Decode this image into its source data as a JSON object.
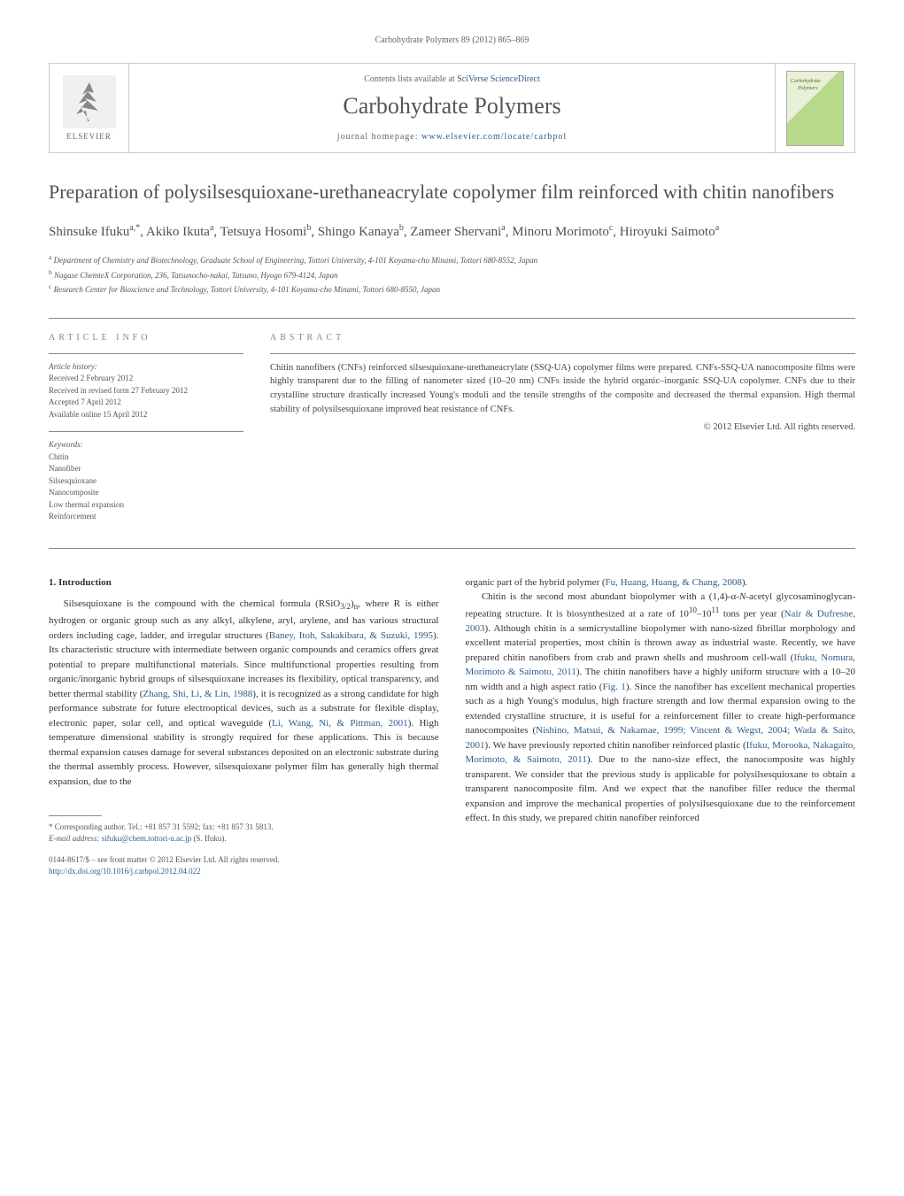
{
  "running_header": "Carbohydrate Polymers 89 (2012) 865–869",
  "header": {
    "contents_prefix": "Contents lists available at ",
    "contents_link": "SciVerse ScienceDirect",
    "journal_name": "Carbohydrate Polymers",
    "homepage_prefix": "journal homepage: ",
    "homepage_link": "www.elsevier.com/locate/carbpol",
    "publisher": "ELSEVIER",
    "cover_text": "Carbohydrate Polymers"
  },
  "title": "Preparation of polysilsesquioxane-urethaneacrylate copolymer film reinforced with chitin nanofibers",
  "authors_html": "Shinsuke Ifuku<sup>a,*</sup>, Akiko Ikuta<sup>a</sup>, Tetsuya Hosomi<sup>b</sup>, Shingo Kanaya<sup>b</sup>, Zameer Shervani<sup>a</sup>, Minoru Morimoto<sup>c</sup>, Hiroyuki Saimoto<sup>a</sup>",
  "affiliations": [
    "<sup>a</sup> Department of Chemistry and Biotechnology, Graduate School of Engineering, Tottori University, 4-101 Koyama-cho Minami, Tottori 680-8552, Japan",
    "<sup>b</sup> Nagase ChemteX Corporation, 236, Tatsunocho-nakai, Tatsuno, Hyogo 679-4124, Japan",
    "<sup>c</sup> Research Center for Bioscience and Technology, Tottori University, 4-101 Koyama-cho Minami, Tottori 680-8550, Japan"
  ],
  "article_info": {
    "header": "ARTICLE INFO",
    "history_label": "Article history:",
    "history": [
      "Received 2 February 2012",
      "Received in revised form 27 February 2012",
      "Accepted 7 April 2012",
      "Available online 15 April 2012"
    ],
    "keywords_label": "Keywords:",
    "keywords": [
      "Chitin",
      "Nanofiber",
      "Silsesquioxane",
      "Nanocomposite",
      "Low thermal expansion",
      "Reinforcement"
    ]
  },
  "abstract": {
    "header": "ABSTRACT",
    "text": "Chitin nanofibers (CNFs) reinforced silsesquioxane-urethaneacrylate (SSQ-UA) copolymer films were prepared. CNFs-SSQ-UA nanocomposite films were highly transparent due to the filling of nanometer sized (10–20 nm) CNFs inside the hybrid organic–inorganic SSQ-UA copolymer. CNFs due to their crystalline structure drastically increased Young's moduli and the tensile strengths of the composite and decreased the thermal expansion. High thermal stability of polysilsesquioxane improved heat resistance of CNFs.",
    "copyright": "© 2012 Elsevier Ltd. All rights reserved."
  },
  "body": {
    "heading1": "1. Introduction",
    "col1_html": "Silsesquioxane is the compound with the chemical formula (RSiO<sub>3/2</sub>)<sub>n</sub>, where R is either hydrogen or organic group such as any alkyl, alkylene, aryl, arylene, and has various structural orders including cage, ladder, and irregular structures (<a class='ref-link' data-name='ref-link' data-interactable='true'>Baney, Itoh, Sakakibara, &amp; Suzuki, 1995</a>). Its characteristic structure with intermediate between organic compounds and ceramics offers great potential to prepare multifunctional materials. Since multifunctional properties resulting from organic/inorganic hybrid groups of silsesquioxane increases its flexibility, optical transparency, and better thermal stability (<a class='ref-link' data-name='ref-link' data-interactable='true'>Zhang, Shi, Li, &amp; Lin, 1988</a>), it is recognized as a strong candidate for high performance substrate for future electrooptical devices, such as a substrate for flexible display, electronic paper, solar cell, and optical waveguide (<a class='ref-link' data-name='ref-link' data-interactable='true'>Li, Wang, Ni, &amp; Pittman, 2001</a>). High temperature dimensional stability is strongly required for these applications. This is because thermal expansion causes damage for several substances deposited on an electronic substrate during the thermal assembly process. However, silsesquioxane polymer film has generally high thermal expansion, due to the",
    "col2_html": "organic part of the hybrid polymer (<a class='ref-link' data-name='ref-link' data-interactable='true'>Fu, Huang, Huang, &amp; Chang, 2008</a>).<br>&nbsp;&nbsp;&nbsp;&nbsp;Chitin is the second most abundant biopolymer with a (1,4)-α-<i>N</i>-acetyl glycosaminoglycan-repeating structure. It is biosynthesized at a rate of 10<sup>10</sup>–10<sup>11</sup> tons per year (<a class='ref-link' data-name='ref-link' data-interactable='true'>Nair &amp; Dufresne, 2003</a>). Although chitin is a semicrystalline biopolymer with nano-sized fibrillar morphology and excellent material properties, most chitin is thrown away as industrial waste. Recently, we have prepared chitin nanofibers from crab and prawn shells and mushroom cell-wall (<a class='ref-link' data-name='ref-link' data-interactable='true'>Ifuku, Nomura, Morimoto &amp; Saimoto, 2011</a>). The chitin nanofibers have a highly uniform structure with a 10–20 nm width and a high aspect ratio (<a class='ref-link' data-name='ref-link' data-interactable='true'>Fig. 1</a>). Since the nanofiber has excellent mechanical properties such as a high Young's modulus, high fracture strength and low thermal expansion owing to the extended crystalline structure, it is useful for a reinforcement filler to create high-performance nanocomposites (<a class='ref-link' data-name='ref-link' data-interactable='true'>Nishino, Matsui, &amp; Nakamae, 1999; Vincent &amp; Wegst, 2004; Wada &amp; Saito, 2001</a>). We have previously reported chitin nanofiber reinforced plastic (<a class='ref-link' data-name='ref-link' data-interactable='true'>Ifuku, Morooka, Nakagaito, Morimoto, &amp; Saimoto, 2011</a>). Due to the nano-size effect, the nanocomposite was highly transparent. We consider that the previous study is applicable for polysilsesquioxane to obtain a transparent nanocomposite film. And we expect that the nanofiber filler reduce the thermal expansion and improve the mechanical properties of polysilsesquioxane due to the reinforcement effect. In this study, we prepared chitin nanofiber reinforced"
  },
  "footnote": {
    "text": "* Corresponding author. Tel.: +81 857 31 5592; fax: +81 857 31 5813.",
    "email_label": "E-mail address: ",
    "email": "sifuku@chem.tottori-u.ac.jp",
    "email_suffix": " (S. Ifuku)."
  },
  "bottom": {
    "line1": "0144-8617/$ – see front matter © 2012 Elsevier Ltd. All rights reserved.",
    "doi": "http://dx.doi.org/10.1016/j.carbpol.2012.04.022"
  },
  "colors": {
    "link": "#2e5c8a",
    "text": "#333333",
    "header_border": "#cccccc"
  }
}
